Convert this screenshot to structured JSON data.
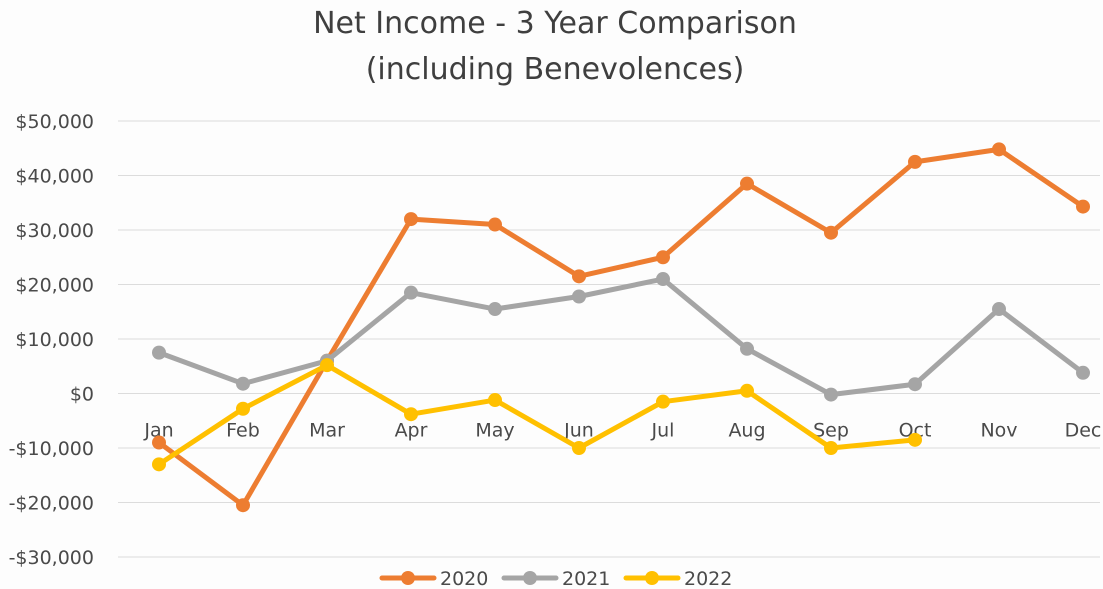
{
  "colors": {
    "2020": "#ed7d31",
    "2021": "#a5a5a5",
    "2022": "#ffc000",
    "grid": "#dcdcdc",
    "text": "#4a4a4a"
  },
  "chart_data": {
    "type": "line",
    "title": "Net Income - 3 Year Comparison",
    "subtitle": "(including Benevolences)",
    "xlabel": "",
    "ylabel": "",
    "categories": [
      "Jan",
      "Feb",
      "Mar",
      "Apr",
      "May",
      "Jun",
      "Jul",
      "Aug",
      "Sep",
      "Oct",
      "Nov",
      "Dec"
    ],
    "ylim": [
      -30000,
      50000
    ],
    "yticks": [
      50000,
      40000,
      30000,
      20000,
      10000,
      0,
      -10000,
      -20000,
      -30000
    ],
    "ytick_labels": [
      "$50,000",
      "$40,000",
      "$30,000",
      "$20,000",
      "$10,000",
      "$0",
      "-$10,000",
      "-$20,000",
      "-$30,000"
    ],
    "grid": true,
    "legend": "bottom",
    "series": [
      {
        "name": "2020",
        "values": [
          -9000,
          -20500,
          6000,
          32000,
          31000,
          21500,
          25000,
          38500,
          29500,
          42500,
          44800,
          34300
        ]
      },
      {
        "name": "2021",
        "values": [
          7500,
          1800,
          6000,
          18500,
          15500,
          17800,
          21000,
          8200,
          -200,
          1700,
          15500,
          3800
        ]
      },
      {
        "name": "2022",
        "values": [
          -13000,
          -2800,
          5200,
          -3800,
          -1200,
          -10000,
          -1500,
          500,
          -10000,
          -8500,
          null,
          null
        ]
      }
    ]
  }
}
